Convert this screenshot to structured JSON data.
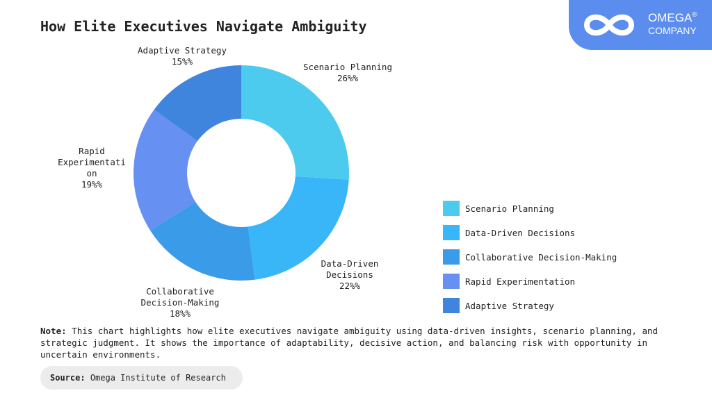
{
  "chart_data": {
    "type": "donut",
    "title": "How Elite Executives Navigate Ambiguity",
    "categories": [
      "Scenario Planning",
      "Data-Driven Decisions",
      "Collaborative Decision-Making",
      "Rapid Experimentation",
      "Adaptive Strategy"
    ],
    "values": [
      26,
      22,
      18,
      19,
      15
    ],
    "value_labels": [
      "26%%",
      "22%%",
      "18%%",
      "19%%",
      "15%%"
    ],
    "colors": [
      "#4dcbee",
      "#38b6f8",
      "#3a9be8",
      "#6690f2",
      "#3f84dd"
    ],
    "legend": "right"
  },
  "note": {
    "label": "Note:",
    "text": "This chart highlights how elite executives navigate ambiguity using data-driven insights, scenario planning, and strategic judgment. It shows the importance of adaptability, decisive action, and balancing risk with opportunity in uncertain environments."
  },
  "source": {
    "label": "Source:",
    "text": "Omega Institute of Research"
  },
  "logo": {
    "name": "OMEGA",
    "mark": "®",
    "sub": "COMPANY"
  }
}
